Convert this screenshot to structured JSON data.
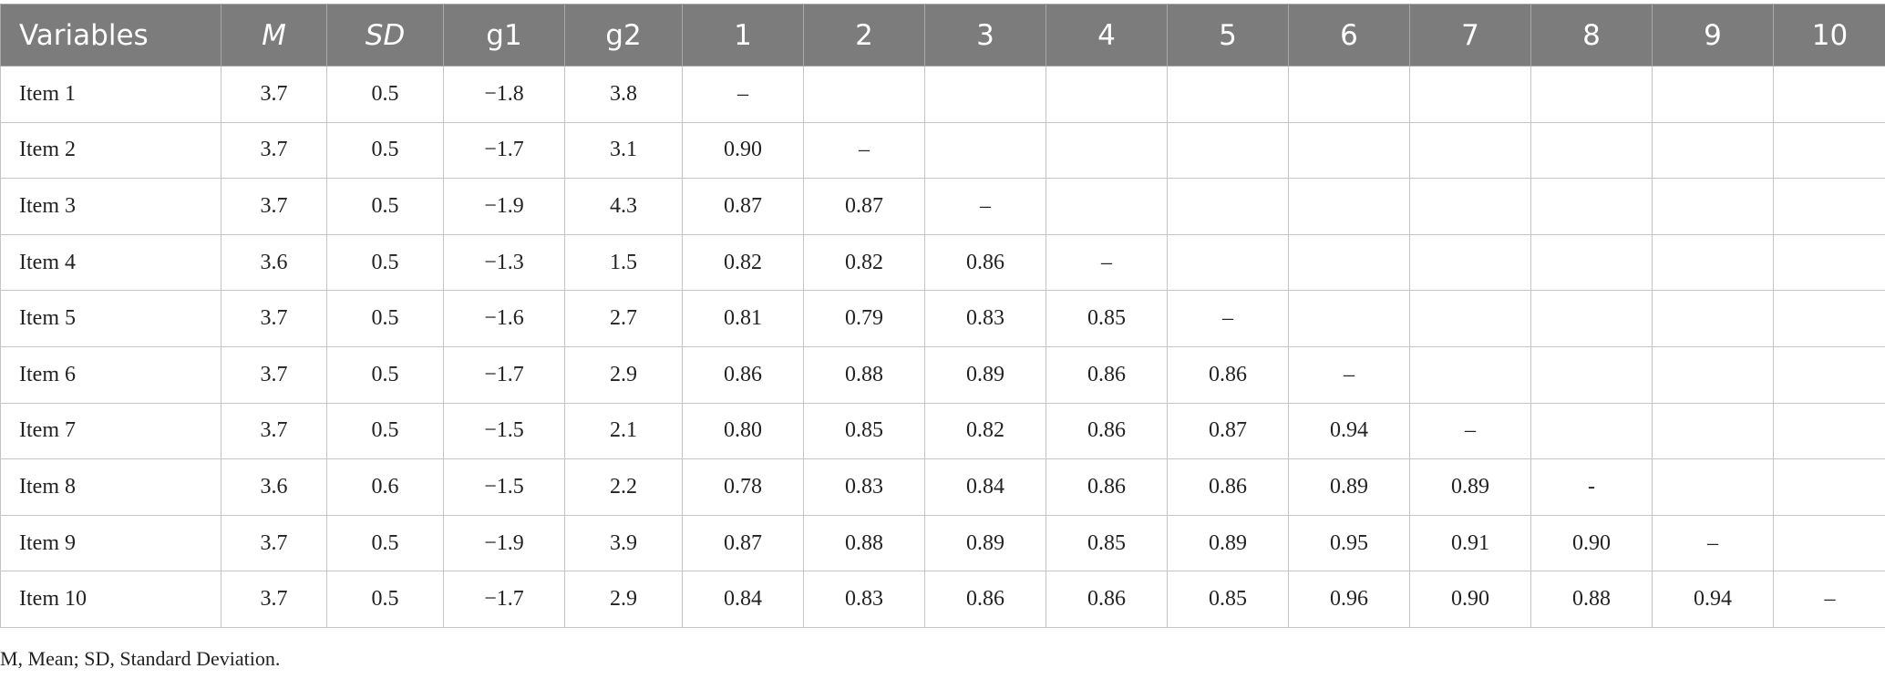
{
  "table": {
    "headers": [
      "Variables",
      "M",
      "SD",
      "g1",
      "g2",
      "1",
      "2",
      "3",
      "4",
      "5",
      "6",
      "7",
      "8",
      "9",
      "10"
    ],
    "rows": [
      [
        "Item 1",
        "3.7",
        "0.5",
        "−1.8",
        "3.8",
        "–",
        "",
        "",
        "",
        "",
        "",
        "",
        "",
        "",
        ""
      ],
      [
        "Item 2",
        "3.7",
        "0.5",
        "−1.7",
        "3.1",
        "0.90",
        "–",
        "",
        "",
        "",
        "",
        "",
        "",
        "",
        ""
      ],
      [
        "Item 3",
        "3.7",
        "0.5",
        "−1.9",
        "4.3",
        "0.87",
        "0.87",
        "–",
        "",
        "",
        "",
        "",
        "",
        "",
        ""
      ],
      [
        "Item 4",
        "3.6",
        "0.5",
        "−1.3",
        "1.5",
        "0.82",
        "0.82",
        "0.86",
        "–",
        "",
        "",
        "",
        "",
        "",
        ""
      ],
      [
        "Item 5",
        "3.7",
        "0.5",
        "−1.6",
        "2.7",
        "0.81",
        "0.79",
        "0.83",
        "0.85",
        "–",
        "",
        "",
        "",
        "",
        ""
      ],
      [
        "Item 6",
        "3.7",
        "0.5",
        "−1.7",
        "2.9",
        "0.86",
        "0.88",
        "0.89",
        "0.86",
        "0.86",
        "–",
        "",
        "",
        "",
        ""
      ],
      [
        "Item 7",
        "3.7",
        "0.5",
        "−1.5",
        "2.1",
        "0.80",
        "0.85",
        "0.82",
        "0.86",
        "0.87",
        "0.94",
        "–",
        "",
        "",
        ""
      ],
      [
        "Item 8",
        "3.6",
        "0.6",
        "−1.5",
        "2.2",
        "0.78",
        "0.83",
        "0.84",
        "0.86",
        "0.86",
        "0.89",
        "0.89",
        "-",
        "",
        ""
      ],
      [
        "Item 9",
        "3.7",
        "0.5",
        "−1.9",
        "3.9",
        "0.87",
        "0.88",
        "0.89",
        "0.85",
        "0.89",
        "0.95",
        "0.91",
        "0.90",
        "–",
        ""
      ],
      [
        "Item 10",
        "3.7",
        "0.5",
        "−1.7",
        "2.9",
        "0.84",
        "0.83",
        "0.86",
        "0.86",
        "0.85",
        "0.96",
        "0.90",
        "0.88",
        "0.94",
        "–"
      ]
    ]
  },
  "footnote": "M, Mean; SD, Standard Deviation."
}
